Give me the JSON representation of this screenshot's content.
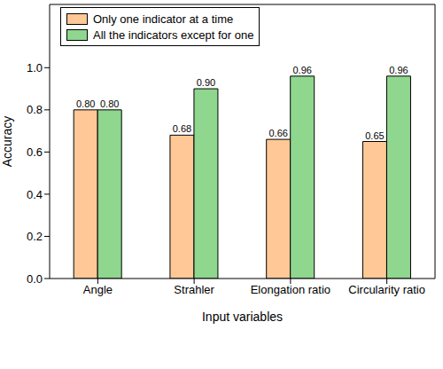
{
  "chart_data": {
    "type": "bar",
    "x_label": "Input variables",
    "y_label": "Accuracy",
    "categories": [
      "Angle",
      "Strahler",
      "Elongation ratio",
      "Circularity ratio"
    ],
    "series": [
      {
        "name": "Only one indicator at a time",
        "color": "#ffc896",
        "values": [
          0.8,
          0.68,
          0.66,
          0.65
        ],
        "value_labels": [
          "0.80",
          "0.68",
          "0.66",
          "0.65"
        ]
      },
      {
        "name": "All the indicators except for one",
        "color": "#8fd68f",
        "values": [
          0.8,
          0.9,
          0.96,
          0.96
        ],
        "value_labels": [
          "0.80",
          "0.90",
          "0.96",
          "0.96"
        ]
      }
    ],
    "ylim": [
      0,
      1.3
    ],
    "yticks": [
      {
        "value": 0,
        "label": "0.0"
      },
      {
        "value": 0.2,
        "label": "0.2"
      },
      {
        "value": 0.4,
        "label": "0.4"
      },
      {
        "value": 0.6,
        "label": "0.6"
      },
      {
        "value": 0.8,
        "label": "0.8"
      },
      {
        "value": 1.0,
        "label": "1.0"
      }
    ],
    "data_labels": true,
    "legend": "upper left",
    "grid": false
  }
}
